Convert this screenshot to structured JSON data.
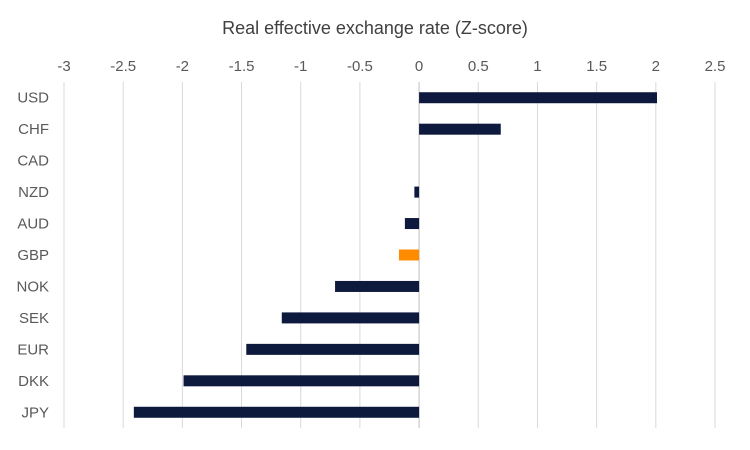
{
  "chart_data": {
    "type": "bar",
    "orientation": "horizontal",
    "title": "Real effective exchange rate (Z-score)",
    "xlabel": "",
    "ylabel": "",
    "xlim": [
      -3,
      2.5
    ],
    "x_ticks": [
      -3,
      -2.5,
      -2,
      -1.5,
      -1,
      -0.5,
      0,
      0.5,
      1,
      1.5,
      2,
      2.5
    ],
    "x_tick_labels": [
      "-3",
      "-2.5",
      "-2",
      "-1.5",
      "-1",
      "-0.5",
      "0",
      "0.5",
      "1",
      "1.5",
      "2",
      "2.5"
    ],
    "x_axis_position": "top",
    "grid": "vertical",
    "legend": "none",
    "categories": [
      "USD",
      "CHF",
      "CAD",
      "NZD",
      "AUD",
      "GBP",
      "NOK",
      "SEK",
      "EUR",
      "DKK",
      "JPY"
    ],
    "values": [
      2.01,
      0.69,
      0.0,
      -0.04,
      -0.12,
      -0.17,
      -0.71,
      -1.16,
      -1.46,
      -1.99,
      -2.41
    ],
    "colors": {
      "default_bar": "#0e1a3d",
      "highlight_bar": "#ff8c00",
      "highlight_category": "GBP",
      "gridline": "#d9d9d9",
      "text": "#595959",
      "title": "#404040"
    }
  }
}
